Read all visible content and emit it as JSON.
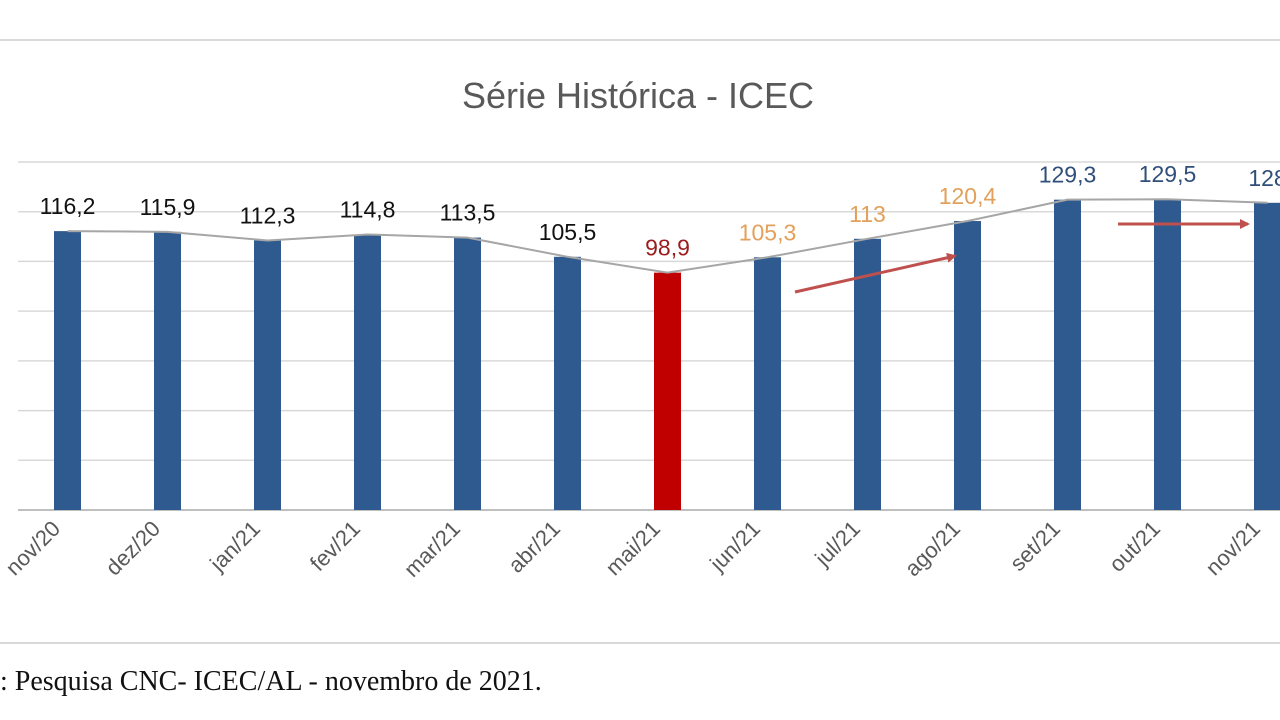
{
  "chart_data": {
    "type": "bar",
    "title": "Série Histórica - ICEC",
    "categories": [
      "nov/20",
      "dez/20",
      "jan/21",
      "fev/21",
      "mar/21",
      "abr/21",
      "mai/21",
      "jun/21",
      "jul/21",
      "ago/21",
      "set/21",
      "out/21",
      "nov/21"
    ],
    "values": [
      116.2,
      115.9,
      112.3,
      114.8,
      113.5,
      105.5,
      98.9,
      105.3,
      113,
      120.4,
      129.3,
      129.5,
      128
    ],
    "data_labels": [
      "116,2",
      "115,9",
      "112,3",
      "114,8",
      "113,5",
      "105,5",
      "98,9",
      "105,3",
      "113",
      "120,4",
      "129,3",
      "129,5",
      "128"
    ],
    "bar_colors": [
      "#2f5a8f",
      "#2f5a8f",
      "#2f5a8f",
      "#2f5a8f",
      "#2f5a8f",
      "#2f5a8f",
      "#c00000",
      "#2f5a8f",
      "#2f5a8f",
      "#2f5a8f",
      "#2f5a8f",
      "#2f5a8f",
      "#2f5a8f"
    ],
    "label_colors": [
      "#111111",
      "#111111",
      "#111111",
      "#111111",
      "#111111",
      "#111111",
      "#9b1c1c",
      "#e2a05a",
      "#e2a05a",
      "#e2a05a",
      "#2f4f7a",
      "#2f4f7a",
      "#2f4f7a"
    ],
    "trend_line": true,
    "trend_line_color": "#a6a6a6",
    "ylim": [
      0,
      145
    ],
    "grid": true,
    "xlabel": "",
    "ylabel": "",
    "arrow_color": "#c0504d"
  },
  "source_text": ": Pesquisa CNC- ICEC/AL - novembro de 2021."
}
